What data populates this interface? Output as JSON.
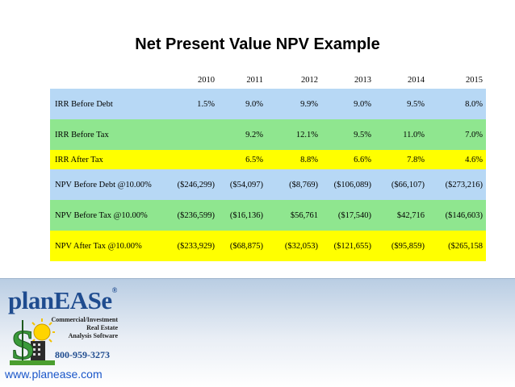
{
  "title": "Net Present Value NPV Example",
  "table": {
    "years": [
      "2010",
      "2011",
      "2012",
      "2013",
      "2014",
      "2015"
    ],
    "rows": [
      {
        "label": "IRR Before Debt",
        "color": "#b7d8f5",
        "values": [
          "1.5%",
          "9.0%",
          "9.9%",
          "9.0%",
          "9.5%",
          "8.0%"
        ]
      },
      {
        "label": "IRR Before Tax",
        "color": "#8fe68f",
        "values": [
          "",
          "9.2%",
          "12.1%",
          "9.5%",
          "11.0%",
          "7.0%"
        ]
      },
      {
        "label": "IRR After Tax",
        "color": "#ffff00",
        "values": [
          "",
          "6.5%",
          "8.8%",
          "6.6%",
          "7.8%",
          "4.6%"
        ]
      },
      {
        "label": "NPV Before Debt @10.00%",
        "color": "#b7d8f5",
        "values": [
          "($246,299)",
          "($54,097)",
          "($8,769)",
          "($106,089)",
          "($66,107)",
          "($273,216)"
        ]
      },
      {
        "label": "NPV Before Tax @10.00%",
        "color": "#8fe68f",
        "values": [
          "($236,599)",
          "($16,136)",
          "$56,761",
          "($17,540)",
          "$42,716",
          "($146,603)"
        ]
      },
      {
        "label": "NPV After Tax @10.00%",
        "color": "#ffff00",
        "values": [
          "($233,929)",
          "($68,875)",
          "($32,053)",
          "($121,655)",
          "($95,859)",
          "($265,158"
        ]
      }
    ]
  },
  "logo": {
    "name": "planEASe",
    "reg": "®",
    "tagline": [
      "Commercial/Investment",
      "Real Estate",
      "Analysis Software"
    ],
    "phone": "800-959-3273"
  },
  "website": "www.planease.com"
}
